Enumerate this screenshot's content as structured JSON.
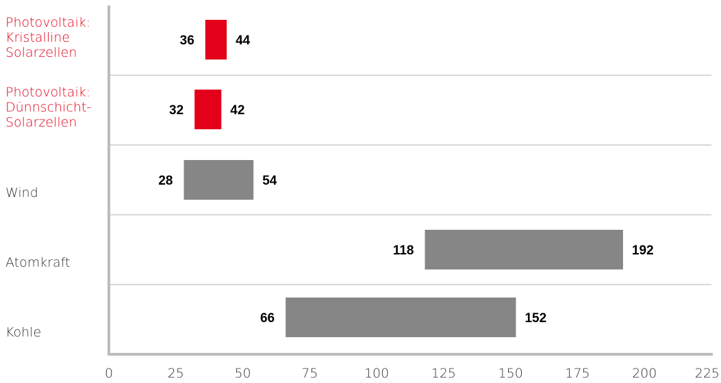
{
  "chart_data": {
    "type": "bar",
    "orientation": "horizontal",
    "subtype": "floating-range",
    "categories": [
      {
        "lines": [
          "Photovoltaik:",
          "Kristalline",
          "Solarzellen"
        ],
        "min": 36,
        "max": 44,
        "highlight": true
      },
      {
        "lines": [
          "Photovoltaik:",
          "Dünnschicht-",
          "Solarzellen"
        ],
        "min": 32,
        "max": 42,
        "highlight": true
      },
      {
        "lines": [
          "Wind"
        ],
        "min": 28,
        "max": 54,
        "highlight": false
      },
      {
        "lines": [
          "Atomkraft"
        ],
        "min": 118,
        "max": 192,
        "highlight": false
      },
      {
        "lines": [
          "Kohle"
        ],
        "min": 66,
        "max": 152,
        "highlight": false
      }
    ],
    "x_ticks": [
      "0",
      "25",
      "50",
      "75",
      "100",
      "125",
      "150",
      "175",
      "200",
      "225"
    ],
    "xlim": [
      0,
      225
    ],
    "title": "",
    "xlabel": "",
    "ylabel": "",
    "grid": "horizontal separators between categories",
    "legend": "none"
  },
  "colors": {
    "highlight_bar": "#e2001a",
    "highlight_label": "#e2001a",
    "normal_bar": "#868686",
    "normal_label": "#333333",
    "axis": "#bbbbbb",
    "separator": "#cccccc"
  }
}
